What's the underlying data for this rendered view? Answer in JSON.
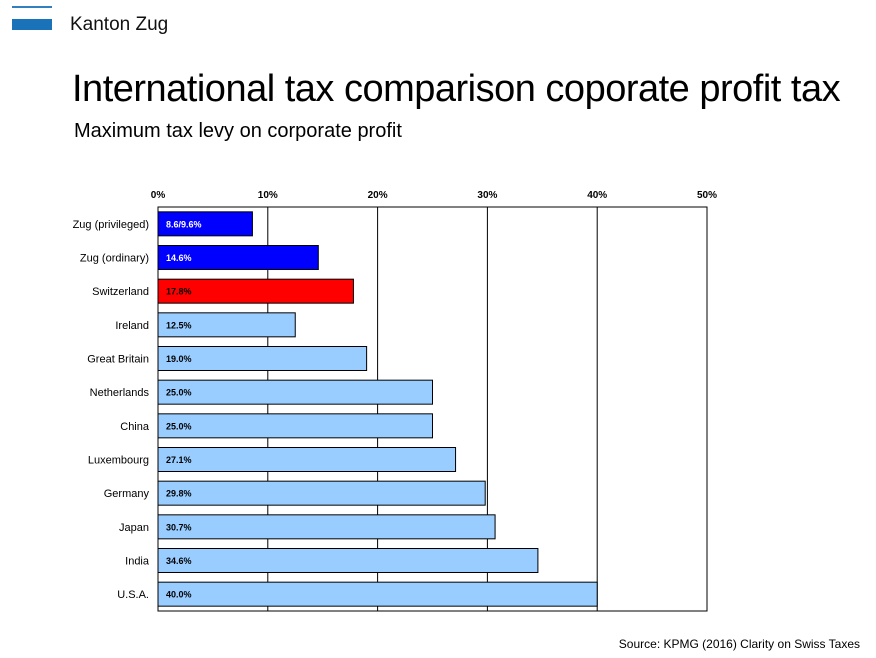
{
  "header": {
    "brand": "Kanton Zug",
    "title": "International tax comparison coporate profit tax",
    "subtitle": "Maximum tax levy on corporate profit"
  },
  "footer": {
    "source": "Source: KPMG (2016) Clarity on Swiss Taxes"
  },
  "colors": {
    "zug": "#0000ff",
    "switzerland": "#ff0000",
    "other": "#99ccff",
    "logo": "#1a73b8"
  },
  "chart_data": {
    "type": "bar",
    "orientation": "horizontal",
    "title": "Maximum tax levy on corporate profit",
    "xlabel": "",
    "ylabel": "",
    "xlim": [
      0,
      50
    ],
    "xticks": [
      "0%",
      "10%",
      "20%",
      "30%",
      "40%",
      "50%"
    ],
    "grid": true,
    "categories": [
      "Zug (privileged)",
      "Zug (ordinary)",
      "Switzerland",
      "Ireland",
      "Great Britain",
      "Netherlands",
      "China",
      "Luxembourg",
      "Germany",
      "Japan",
      "India",
      "U.S.A."
    ],
    "values": [
      8.6,
      14.6,
      17.8,
      12.5,
      19.0,
      25.0,
      25.0,
      27.1,
      29.8,
      30.7,
      34.6,
      40.0
    ],
    "labels": [
      "8.6/9.6%",
      "14.6%",
      "17.8%",
      "12.5%",
      "19.0%",
      "25.0%",
      "25.0%",
      "27.1%",
      "29.8%",
      "30.7%",
      "34.6%",
      "40.0%"
    ],
    "color_groups": [
      "zug",
      "zug",
      "switzerland",
      "other",
      "other",
      "other",
      "other",
      "other",
      "other",
      "other",
      "other",
      "other"
    ]
  }
}
